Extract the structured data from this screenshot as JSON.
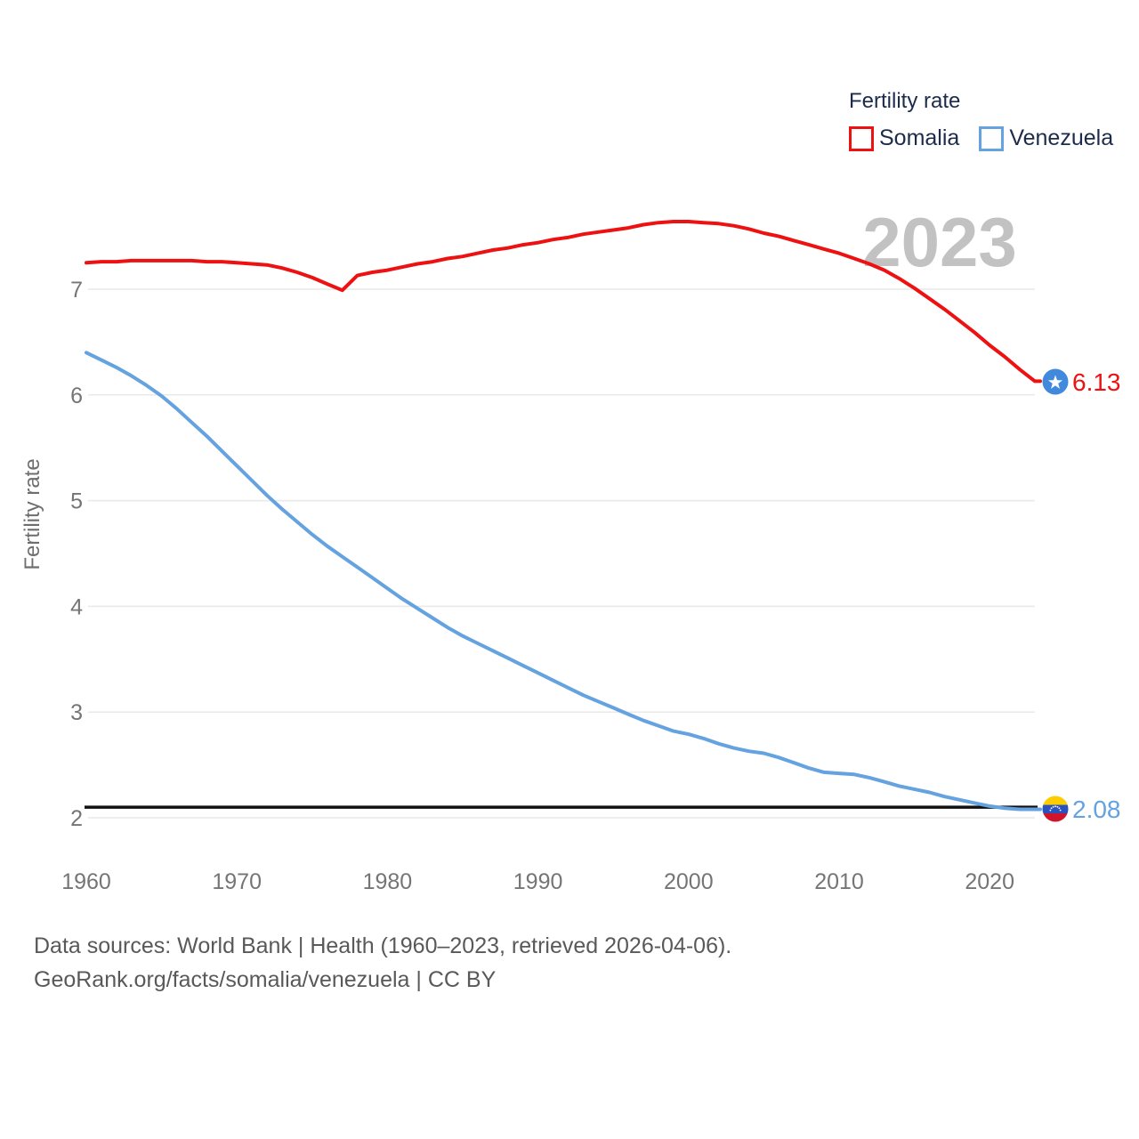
{
  "legend": {
    "title": "Fertility rate",
    "items": [
      {
        "label": "Somalia",
        "color": "#ee1111"
      },
      {
        "label": "Venezuela",
        "color": "#64a2e0"
      }
    ]
  },
  "watermark": "2023",
  "axes": {
    "y_label": "Fertility rate",
    "y_ticks": [
      "7",
      "6",
      "5",
      "4",
      "3",
      "2"
    ],
    "x_ticks": [
      "1960",
      "1970",
      "1980",
      "1990",
      "2000",
      "2010",
      "2020"
    ]
  },
  "chart_data": {
    "type": "line",
    "title": "Fertility rate",
    "xlabel": "",
    "ylabel": "Fertility rate",
    "xlim": [
      1960,
      2023
    ],
    "ylim": [
      1.85,
      7.9
    ],
    "grid": "horizontal",
    "legend_position": "top-right",
    "x": [
      1960,
      1961,
      1962,
      1963,
      1964,
      1965,
      1966,
      1967,
      1968,
      1969,
      1970,
      1971,
      1972,
      1973,
      1974,
      1975,
      1976,
      1977,
      1978,
      1979,
      1980,
      1981,
      1982,
      1983,
      1984,
      1985,
      1986,
      1987,
      1988,
      1989,
      1990,
      1991,
      1992,
      1993,
      1994,
      1995,
      1996,
      1997,
      1998,
      1999,
      2000,
      2001,
      2002,
      2003,
      2004,
      2005,
      2006,
      2007,
      2008,
      2009,
      2010,
      2011,
      2012,
      2013,
      2014,
      2015,
      2016,
      2017,
      2018,
      2019,
      2020,
      2021,
      2022,
      2023
    ],
    "series": [
      {
        "name": "Somalia",
        "color": "#ee1111",
        "end_label": "6.13",
        "end_value": 6.13,
        "values": [
          7.25,
          7.26,
          7.26,
          7.27,
          7.27,
          7.27,
          7.27,
          7.27,
          7.26,
          7.26,
          7.25,
          7.24,
          7.23,
          7.2,
          7.16,
          7.11,
          7.05,
          6.99,
          7.13,
          7.16,
          7.18,
          7.21,
          7.24,
          7.26,
          7.29,
          7.31,
          7.34,
          7.37,
          7.39,
          7.42,
          7.44,
          7.47,
          7.49,
          7.52,
          7.54,
          7.56,
          7.58,
          7.61,
          7.63,
          7.64,
          7.64,
          7.63,
          7.62,
          7.6,
          7.57,
          7.53,
          7.5,
          7.46,
          7.42,
          7.38,
          7.34,
          7.29,
          7.24,
          7.18,
          7.1,
          7.01,
          6.91,
          6.81,
          6.7,
          6.59,
          6.47,
          6.36,
          6.24,
          6.13
        ]
      },
      {
        "name": "Venezuela",
        "color": "#64a2e0",
        "end_label": "2.08",
        "end_value": 2.08,
        "values": [
          6.4,
          6.33,
          6.26,
          6.18,
          6.09,
          5.99,
          5.87,
          5.74,
          5.61,
          5.47,
          5.33,
          5.19,
          5.05,
          4.92,
          4.8,
          4.68,
          4.57,
          4.47,
          4.37,
          4.27,
          4.17,
          4.07,
          3.98,
          3.89,
          3.8,
          3.72,
          3.65,
          3.58,
          3.51,
          3.44,
          3.37,
          3.3,
          3.23,
          3.16,
          3.1,
          3.04,
          2.98,
          2.92,
          2.87,
          2.82,
          2.79,
          2.75,
          2.7,
          2.66,
          2.63,
          2.61,
          2.57,
          2.52,
          2.47,
          2.43,
          2.42,
          2.41,
          2.38,
          2.34,
          2.3,
          2.27,
          2.24,
          2.2,
          2.17,
          2.14,
          2.11,
          2.09,
          2.08,
          2.08
        ]
      }
    ],
    "reference_line": {
      "value": 2.1,
      "color": "#111111"
    }
  },
  "footer": {
    "line1": "Data sources: World Bank | Health (1960–2023, retrieved 2026-04-06).",
    "line2": "GeoRank.org/facts/somalia/venezuela | CC BY"
  }
}
